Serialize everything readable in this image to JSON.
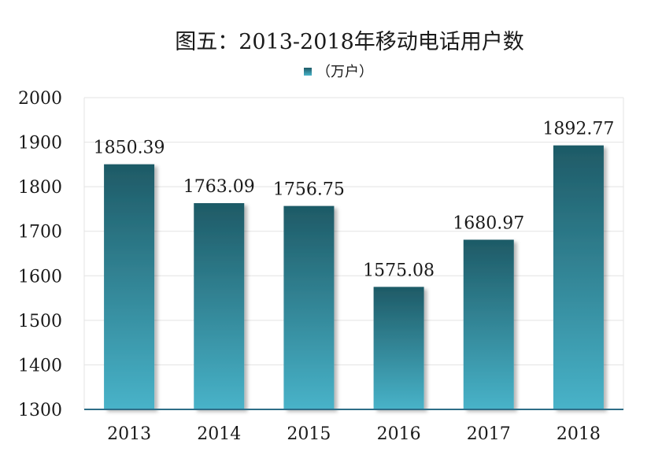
{
  "chart_data": {
    "type": "bar",
    "title": "图五：2013-2018年移动电话用户数",
    "legend": {
      "label": "（万户）",
      "position": "top-center"
    },
    "categories": [
      "2013",
      "2014",
      "2015",
      "2016",
      "2017",
      "2018"
    ],
    "series": [
      {
        "name": "（万户）",
        "values": [
          1850.39,
          1763.09,
          1756.75,
          1575.08,
          1680.97,
          1892.77
        ]
      }
    ],
    "data_labels": [
      "1850.39",
      "1763.09",
      "1756.75",
      "1575.08",
      "1680.97",
      "1892.77"
    ],
    "ylim": [
      1300,
      2000
    ],
    "yticks": [
      1300,
      1400,
      1500,
      1600,
      1700,
      1800,
      1900,
      2000
    ],
    "grid": true,
    "colors": {
      "bar_top": "#1e5a66",
      "bar_bottom": "#48b3c9",
      "axis": "#2e6e88",
      "grid": "#e3e3e3"
    }
  }
}
